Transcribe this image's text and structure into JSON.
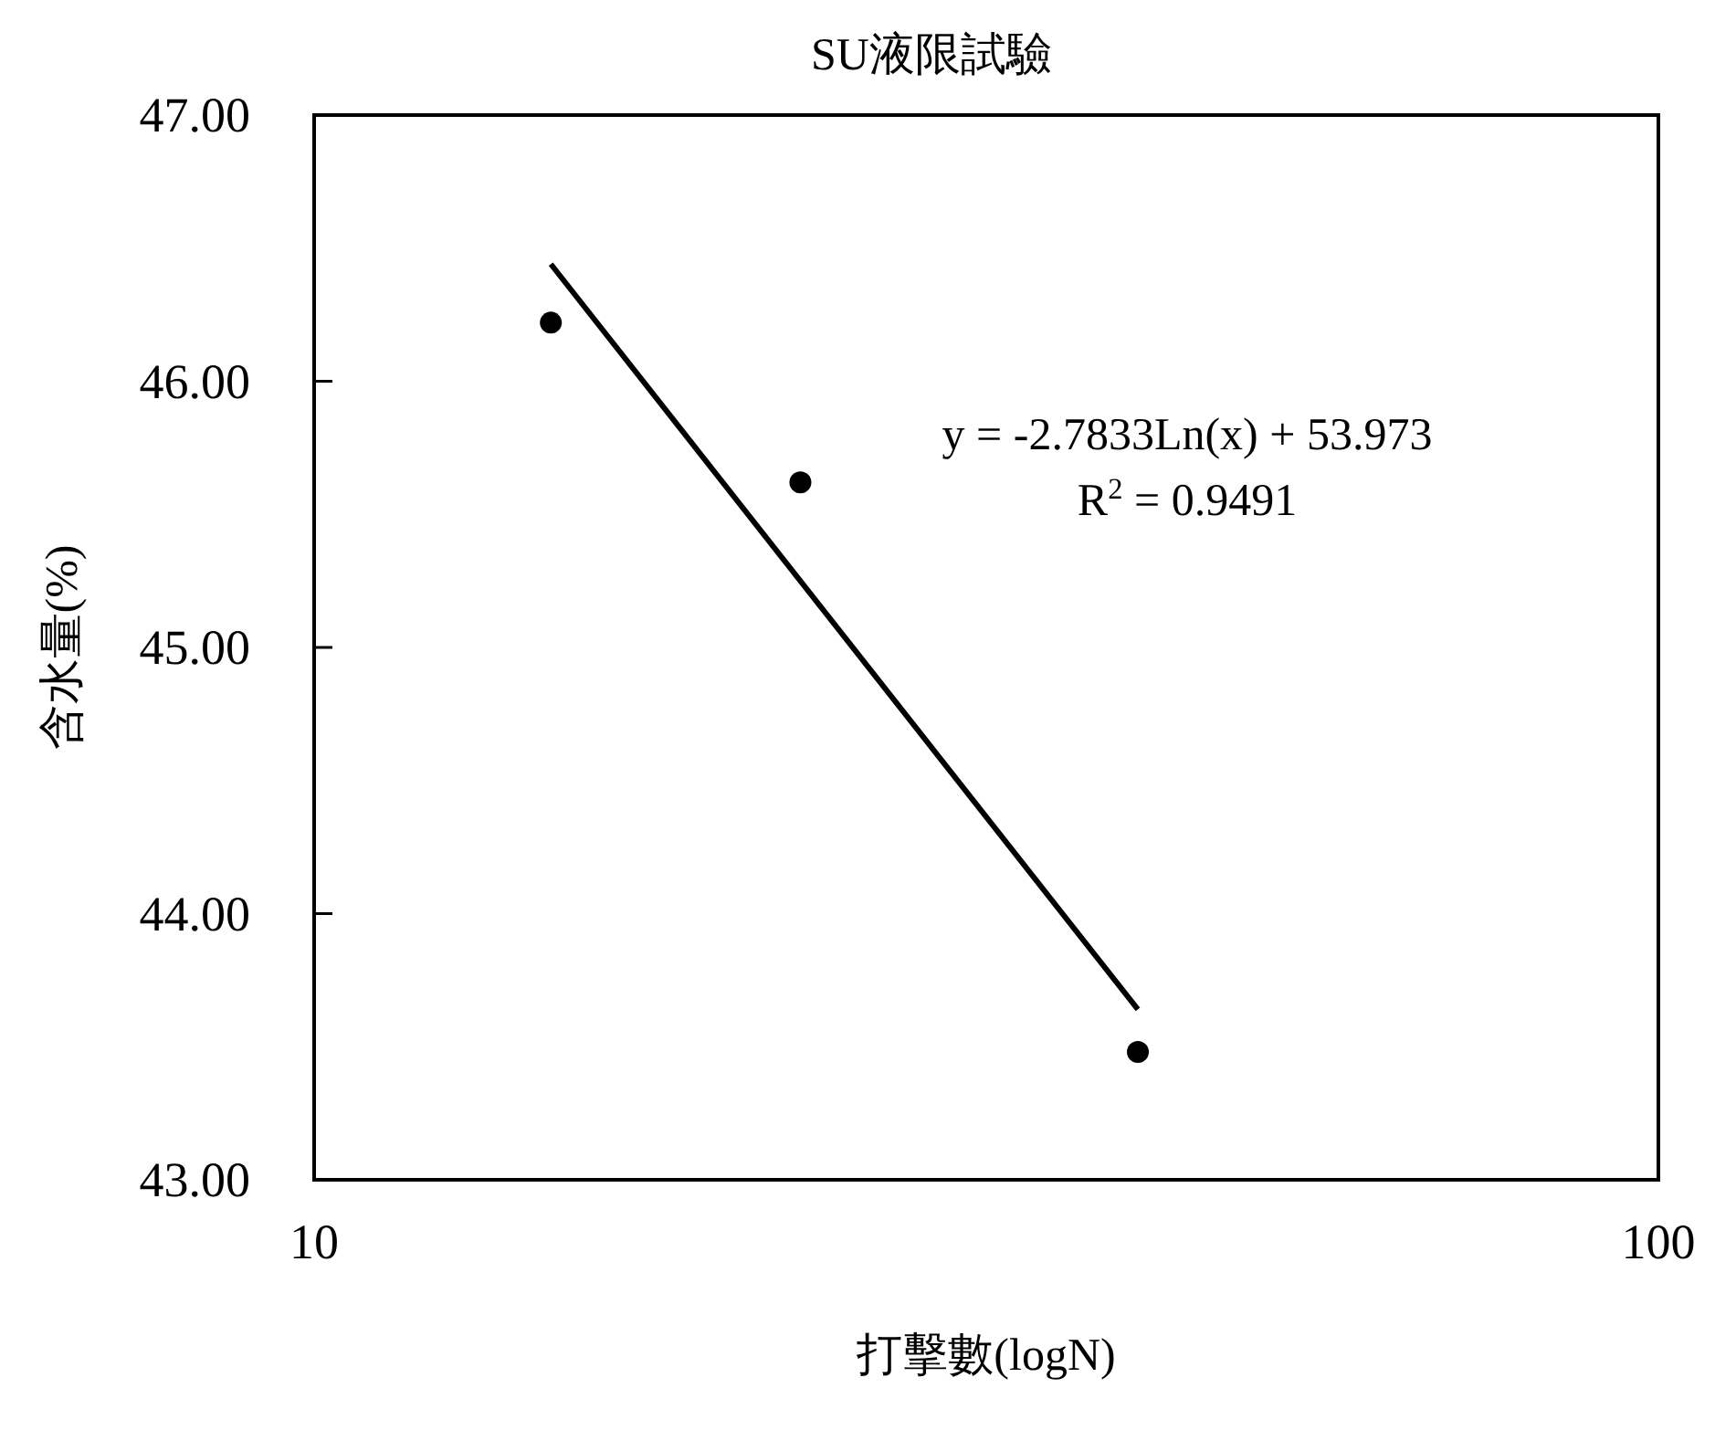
{
  "chart_data": {
    "type": "scatter",
    "title": "SU液限試驗",
    "xlabel": "打擊數(logN)",
    "ylabel": "含水量(%)",
    "log": "x",
    "xlim": [
      10,
      100
    ],
    "xticks": [
      10,
      100
    ],
    "ylim": [
      43,
      47
    ],
    "yticks": [
      {
        "value": 43,
        "label": "43.00"
      },
      {
        "value": 44,
        "label": "44.00"
      },
      {
        "value": 45,
        "label": "45.00"
      },
      {
        "value": 46,
        "label": "46.00"
      },
      {
        "value": 47,
        "label": "47.00"
      }
    ],
    "grid": false,
    "series": [
      {
        "type": "scatter",
        "color": "#000000",
        "marker": "circle",
        "x": [
          15,
          23,
          41
        ],
        "values": [
          46.22,
          45.62,
          43.48
        ]
      },
      {
        "type": "line",
        "color": "#000000",
        "marker": "none",
        "line_style": "solid",
        "x": [
          15,
          41
        ],
        "values": [
          46.44,
          43.64
        ]
      }
    ],
    "annotations": [
      "y = -2.7833Ln(x) + 53.973",
      "R$^{2}$ = 0.9491"
    ]
  }
}
